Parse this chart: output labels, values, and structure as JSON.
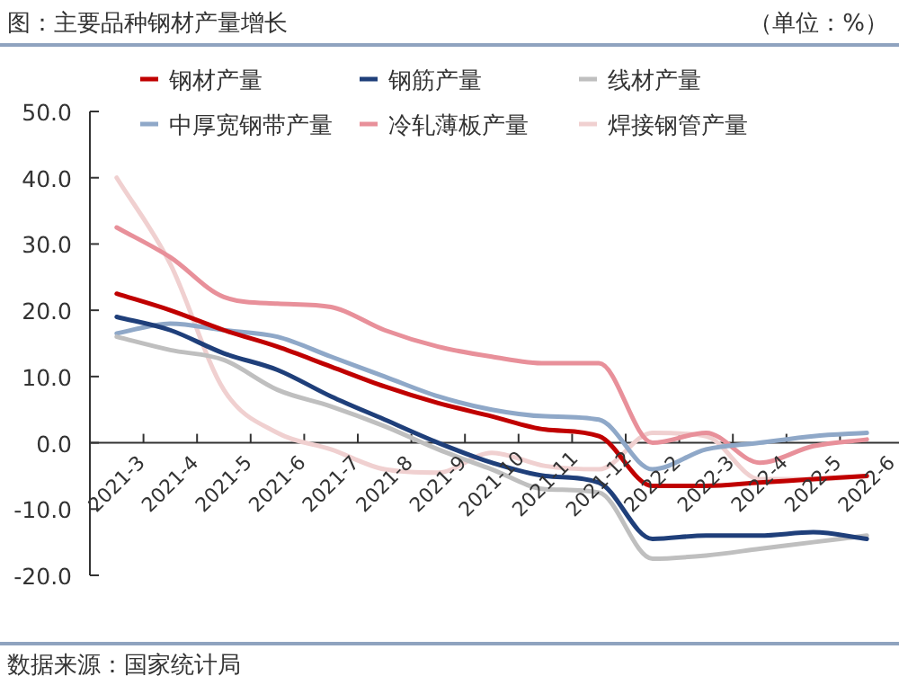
{
  "chart_data": {
    "type": "line",
    "title": "图：主要品种钢材产量增长",
    "annotations": [
      "（单位：%）",
      "数据来源：国家统计局"
    ],
    "categories": [
      "2021-3",
      "2021-4",
      "2021-5",
      "2021-6",
      "2021-7",
      "2021-8",
      "2021-9",
      "2021-10",
      "2021-11",
      "2021-12",
      "2022-2",
      "2022-3",
      "2022-4",
      "2022-5",
      "2022-6"
    ],
    "series": [
      {
        "name": "钢材产量",
        "color": "#c00000",
        "values": [
          22.5,
          20,
          17,
          14.5,
          11.5,
          8.5,
          6,
          4,
          2,
          1,
          -6.5,
          -6.5,
          -6,
          -5.5,
          -5
        ]
      },
      {
        "name": "钢筋产量",
        "color": "#1f3f7a",
        "values": [
          19,
          17,
          13.5,
          11,
          7,
          3.5,
          0,
          -3,
          -5,
          -6,
          -14.5,
          -14,
          -14,
          -13.5,
          -14.5
        ]
      },
      {
        "name": "线材产量",
        "color": "#bfbfbf",
        "values": [
          16,
          14,
          12.5,
          8,
          5.5,
          2.5,
          -1,
          -4,
          -7,
          -7.5,
          -17.5,
          -17,
          -16,
          -15,
          -14
        ]
      },
      {
        "name": "中厚宽钢带产量",
        "color": "#8fa8c8",
        "values": [
          16.5,
          18,
          17,
          16,
          13,
          10,
          7,
          5,
          4,
          3.5,
          -4,
          -1,
          0,
          1,
          1.5
        ]
      },
      {
        "name": "冷轧薄板产量",
        "color": "#e8909a",
        "values": [
          32.5,
          28,
          22,
          21,
          20.5,
          17,
          14.5,
          13,
          12,
          12,
          0,
          1.5,
          -3,
          -0.5,
          0.5
        ]
      },
      {
        "name": "焊接钢管产量",
        "color": "#f0d0d0",
        "values": [
          40,
          27,
          8,
          1.5,
          -1,
          -4,
          -4.5,
          -1.5,
          -3.5,
          -4,
          1.5,
          1,
          -5.5,
          -5.5,
          -5
        ]
      }
    ],
    "ylim": [
      -20,
      50
    ],
    "yticks": [
      {
        "value": -20,
        "label": "-20.0"
      },
      {
        "value": -10,
        "label": "-10.0"
      },
      {
        "value": 0,
        "label": "0.0"
      },
      {
        "value": 10,
        "label": "10.0"
      },
      {
        "value": 20,
        "label": "20.0"
      },
      {
        "value": 30,
        "label": "30.0"
      },
      {
        "value": 40,
        "label": "40.0"
      },
      {
        "value": 50,
        "label": "50.0"
      }
    ],
    "grid": false,
    "legend": "top",
    "marker": "none",
    "line_style": "solid"
  }
}
